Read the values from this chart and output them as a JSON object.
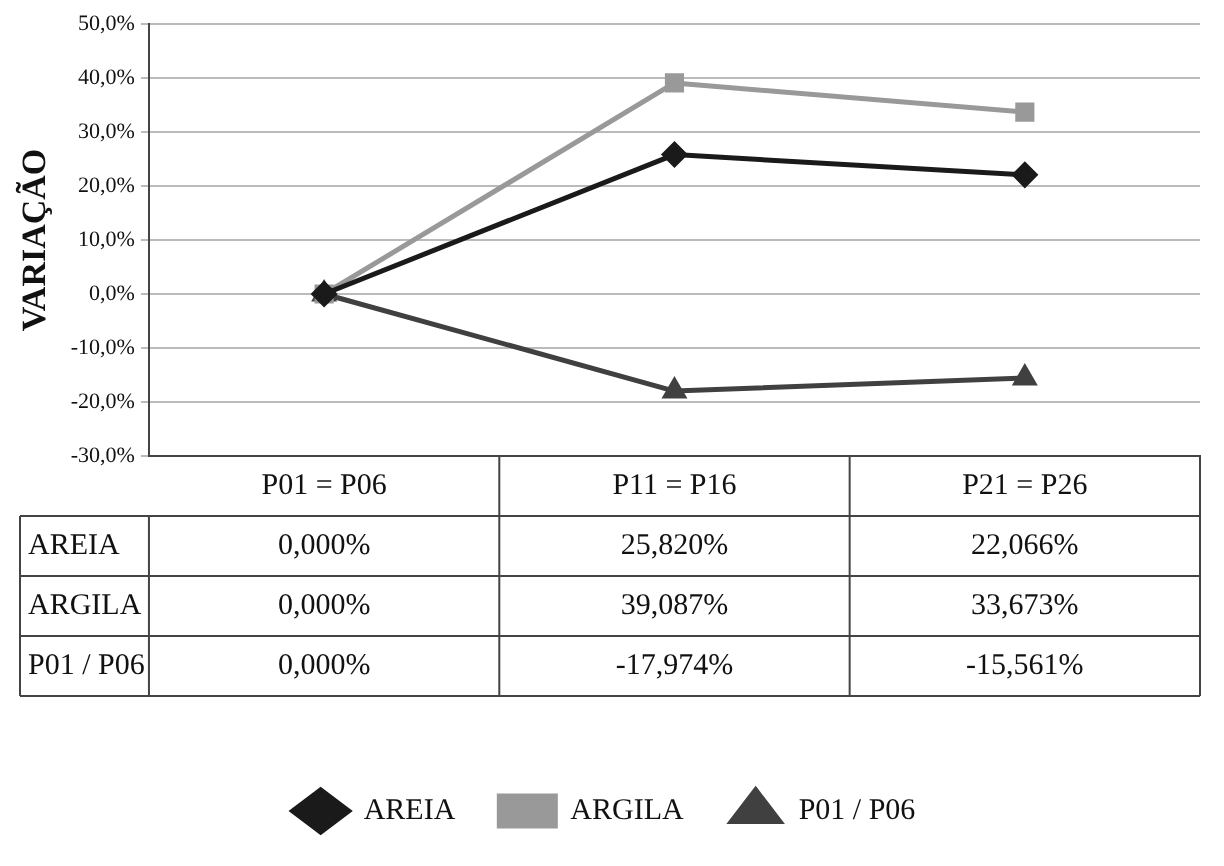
{
  "chart_data": {
    "type": "line",
    "ylabel": "VARIAÇÃO",
    "categories": [
      "P01 = P06",
      "P11 = P16",
      "P21 = P26"
    ],
    "series": [
      {
        "name": "AREIA",
        "color": "#1a1a1a",
        "marker": "diamond",
        "values": [
          0,
          25.82,
          22.066
        ],
        "value_labels": [
          "0,000%",
          "25,820%",
          "22,066%"
        ]
      },
      {
        "name": "ARGILA",
        "color": "#999999",
        "marker": "square",
        "values": [
          0,
          39.087,
          33.673
        ],
        "value_labels": [
          "0,000%",
          "39,087%",
          "33,673%"
        ]
      },
      {
        "name": "P01 / P06",
        "color": "#404040",
        "marker": "triangle",
        "values": [
          0,
          -17.974,
          -15.561
        ],
        "value_labels": [
          "0,000%",
          "-17,974%",
          "-15,561%"
        ]
      }
    ],
    "ylim": [
      -30,
      50
    ],
    "yticks": [
      {
        "value": -30,
        "label": "-30,0%"
      },
      {
        "value": -20,
        "label": "-20,0%"
      },
      {
        "value": -10,
        "label": "-10,0%"
      },
      {
        "value": 0,
        "label": "0,0%"
      },
      {
        "value": 10,
        "label": "10,0%"
      },
      {
        "value": 20,
        "label": "20,0%"
      },
      {
        "value": 30,
        "label": "30,0%"
      },
      {
        "value": 40,
        "label": "40,0%"
      },
      {
        "value": 50,
        "label": "50,0%"
      }
    ],
    "grid": "y",
    "legend": "bottom",
    "line_style": "solid"
  }
}
